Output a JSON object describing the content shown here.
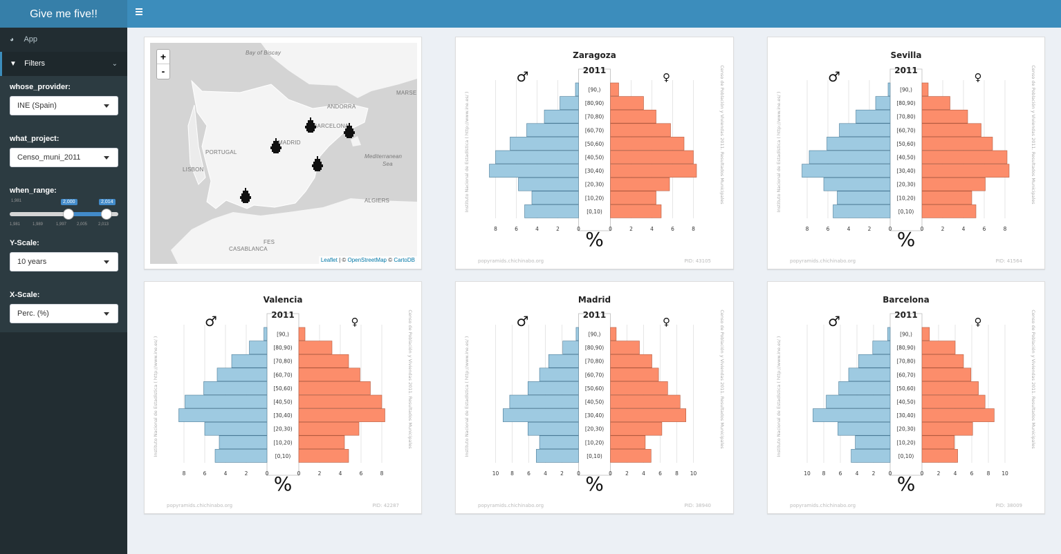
{
  "app": {
    "title": "Give me five!!"
  },
  "sidebar": {
    "items": [
      {
        "label": "App",
        "icon": "dashboard-icon"
      },
      {
        "label": "Filters",
        "icon": "filter-icon"
      }
    ],
    "filters": {
      "provider_label": "whose_provider:",
      "provider_value": "INE (Spain)",
      "project_label": "what_project:",
      "project_value": "Censo_muni_2011",
      "range_label": "when_range:",
      "range_min": "1,981",
      "range_from": "2,000",
      "range_to": "2,014",
      "range_ticks": [
        "1,981",
        "1,989",
        "1,997",
        "2,005",
        "2,013"
      ],
      "yscale_label": "Y-Scale:",
      "yscale_value": "10 years",
      "xscale_label": "X-Scale:",
      "xscale_value": "Perc. (%)"
    }
  },
  "map": {
    "zoom_in": "+",
    "zoom_out": "-",
    "labels": [
      "Bay of Biscay",
      "MARSEIL",
      "ANDORRA",
      "BARCELONA",
      "MADRID",
      "PORTUGAL",
      "Mediterranean",
      "Sea",
      "LISBON",
      "ALGIERS",
      "FES",
      "CASABLANCA"
    ],
    "attribution": {
      "leaflet": "Leaflet",
      "sep1": " | © ",
      "osm": "OpenStreetMap",
      "sep2": " © ",
      "carto": "CartoDB"
    }
  },
  "pyramid_common": {
    "year": "2011",
    "male_symbol": "♂",
    "female_symbol": "♀",
    "age_groups": [
      "[90,)",
      "[80,90)",
      "[70,80)",
      "[60,70)",
      "[50,60)",
      "[40,50)",
      "[30,40)",
      "[20,30)",
      "[10,20)",
      "[0,10)"
    ],
    "unit": "%",
    "left_credit": "Instituto Nacional de Estadística  ( http://www.ine.es/ )",
    "right_credit": "Censo de Población y Viviendas 2011. Resultados Municipales",
    "footer": "popyramids.chichinabo.org",
    "colors": {
      "male": "#9ecae1",
      "female": "#fc8d6b",
      "male_stroke": "#4a7a96",
      "female_stroke": "#b35a3f"
    }
  },
  "chart_data": [
    {
      "type": "bar",
      "title": "Zaragoza",
      "subtitle": "2011",
      "pid": "PID: 43105",
      "xmax": 8,
      "xticks": [
        8,
        6,
        4,
        2,
        0
      ],
      "categories": [
        "[90,)",
        "[80,90)",
        "[70,80)",
        "[60,70)",
        "[50,60)",
        "[40,50)",
        "[30,40)",
        "[20,30)",
        "[10,20)",
        "[0,10)"
      ],
      "series": [
        {
          "name": "♂",
          "values": [
            0.3,
            1.8,
            3.3,
            5.0,
            6.6,
            8.0,
            8.6,
            5.8,
            4.5,
            5.2
          ]
        },
        {
          "name": "♀",
          "values": [
            0.8,
            3.2,
            4.4,
            5.8,
            7.1,
            8.0,
            8.3,
            5.7,
            4.4,
            4.9
          ]
        }
      ]
    },
    {
      "type": "bar",
      "title": "Sevilla",
      "subtitle": "2011",
      "pid": "PID: 41564",
      "xmax": 8,
      "xticks": [
        8,
        6,
        4,
        2,
        0
      ],
      "categories": [
        "[90,)",
        "[80,90)",
        "[70,80)",
        "[60,70)",
        "[50,60)",
        "[40,50)",
        "[30,40)",
        "[20,30)",
        "[10,20)",
        "[0,10)"
      ],
      "series": [
        {
          "name": "♂",
          "values": [
            0.2,
            1.4,
            3.3,
            4.9,
            6.1,
            7.8,
            8.5,
            6.4,
            5.1,
            5.5
          ]
        },
        {
          "name": "♀",
          "values": [
            0.6,
            2.7,
            4.4,
            5.7,
            6.8,
            8.2,
            8.4,
            6.1,
            4.8,
            5.2
          ]
        }
      ]
    },
    {
      "type": "bar",
      "title": "Valencia",
      "subtitle": "2011",
      "pid": "PID: 42287",
      "xmax": 8,
      "xticks": [
        8,
        6,
        4,
        2,
        0
      ],
      "categories": [
        "[90,)",
        "[80,90)",
        "[70,80)",
        "[60,70)",
        "[50,60)",
        "[40,50)",
        "[30,40)",
        "[20,30)",
        "[10,20)",
        "[0,10)"
      ],
      "series": [
        {
          "name": "♂",
          "values": [
            0.3,
            1.7,
            3.4,
            4.8,
            6.1,
            7.9,
            8.5,
            6.0,
            4.6,
            5.0
          ]
        },
        {
          "name": "♀",
          "values": [
            0.6,
            3.2,
            4.8,
            5.9,
            6.9,
            8.0,
            8.3,
            5.8,
            4.4,
            4.8
          ]
        }
      ]
    },
    {
      "type": "bar",
      "title": "Madrid",
      "subtitle": "2011",
      "pid": "PID: 38940",
      "xmax": 10,
      "xticks": [
        10,
        8,
        6,
        4,
        2,
        0
      ],
      "categories": [
        "[90,)",
        "[80,90)",
        "[70,80)",
        "[60,70)",
        "[50,60)",
        "[40,50)",
        "[30,40)",
        "[20,30)",
        "[10,20)",
        "[0,10)"
      ],
      "series": [
        {
          "name": "♂",
          "values": [
            0.3,
            1.9,
            3.6,
            4.7,
            6.1,
            8.3,
            9.1,
            6.1,
            4.7,
            5.1
          ]
        },
        {
          "name": "♀",
          "values": [
            0.7,
            3.5,
            5.0,
            5.8,
            6.9,
            8.4,
            9.1,
            6.2,
            4.2,
            4.9
          ]
        }
      ]
    },
    {
      "type": "bar",
      "title": "Barcelona",
      "subtitle": "2011",
      "pid": "PID: 38009",
      "xmax": 10,
      "xticks": [
        10,
        8,
        6,
        4,
        2,
        0
      ],
      "categories": [
        "[90,)",
        "[80,90)",
        "[70,80)",
        "[60,70)",
        "[50,60)",
        "[40,50)",
        "[30,40)",
        "[20,30)",
        "[10,20)",
        "[0,10)"
      ],
      "series": [
        {
          "name": "♂",
          "values": [
            0.3,
            2.1,
            3.8,
            5.0,
            6.2,
            7.7,
            9.3,
            6.3,
            4.2,
            4.7
          ]
        },
        {
          "name": "♀",
          "values": [
            0.9,
            4.0,
            5.0,
            5.9,
            6.8,
            7.6,
            8.7,
            6.1,
            3.9,
            4.3
          ]
        }
      ]
    }
  ]
}
